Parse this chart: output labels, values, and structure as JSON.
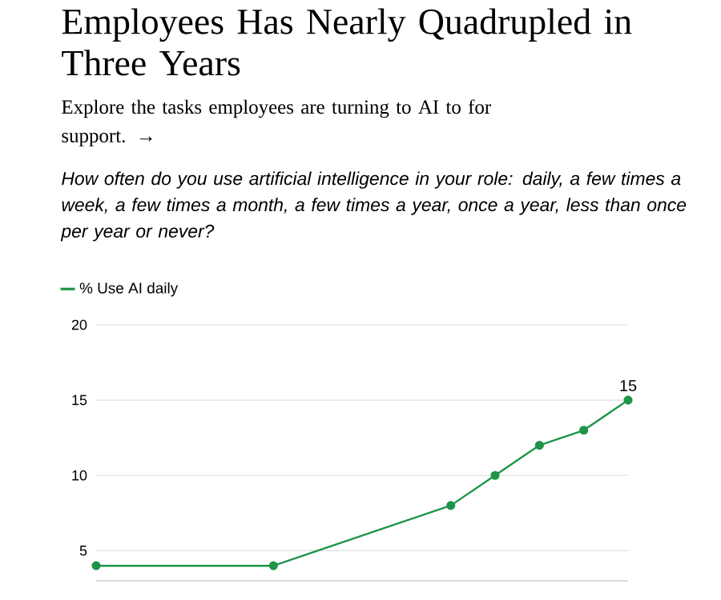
{
  "chart_data": {
    "type": "line",
    "title": "Employees Has Nearly Quadrupled in Three Years",
    "subtitle": "Explore the tasks employees are turning to AI to for support. →",
    "annotations": [
      "How often do you use artificial intelligence in your role: daily, a few times a week, a few times a month, a few times a year, once a year, less than once per year or never?"
    ],
    "categories": [
      null,
      null,
      null,
      null,
      null,
      null,
      null,
      null,
      null,
      null,
      null,
      null,
      null
    ],
    "series": [
      {
        "name": "% Use AI daily",
        "color": "#1e9448",
        "values": [
          4,
          null,
          null,
          null,
          4,
          null,
          null,
          null,
          8,
          10,
          12,
          13,
          15
        ],
        "value_labels": [
          null,
          null,
          null,
          null,
          null,
          null,
          null,
          null,
          null,
          null,
          null,
          null,
          "15"
        ]
      }
    ],
    "ylim": [
      3,
      20
    ],
    "yticks": [
      5,
      10,
      15,
      20
    ],
    "grid": "y",
    "legend": "top left",
    "marker": "circle"
  }
}
